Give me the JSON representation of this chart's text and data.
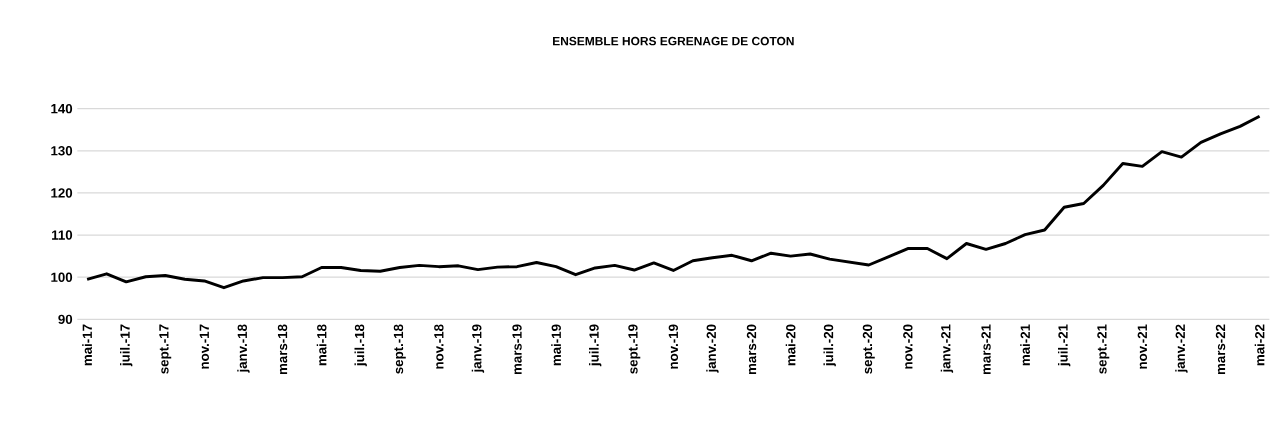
{
  "chart_data": {
    "type": "line",
    "title": "ENSEMBLE HORS EGRENAGE DE COTON",
    "categories": [
      "mai-17",
      null,
      "juil.-17",
      null,
      "sept.-17",
      null,
      "nov.-17",
      null,
      "janv.-18",
      null,
      "mars-18",
      null,
      "mai-18",
      null,
      "juil.-18",
      null,
      "sept.-18",
      null,
      "nov.-18",
      null,
      "janv.-19",
      null,
      "mars-19",
      null,
      "mai-19",
      null,
      "juil.-19",
      null,
      "sept.-19",
      null,
      "nov.-19",
      null,
      "janv.-20",
      null,
      "mars-20",
      null,
      "mai-20",
      null,
      "juil.-20",
      null,
      "sept.-20",
      null,
      "nov.-20",
      null,
      "janv.-21",
      null,
      "mars-21",
      null,
      "mai-21",
      null,
      "juil.-21",
      null,
      "sept.-21",
      null,
      "nov.-21",
      null,
      "janv.-22",
      null,
      "mars-22",
      null,
      "mai-22"
    ],
    "values": [
      99.5,
      100.8,
      98.9,
      100.1,
      100.4,
      99.5,
      99.1,
      97.5,
      99.1,
      99.9,
      99.9,
      100.1,
      102.3,
      102.3,
      101.6,
      101.4,
      102.3,
      102.8,
      102.5,
      102.7,
      101.8,
      102.4,
      102.5,
      103.5,
      102.5,
      100.6,
      102.2,
      102.8,
      101.7,
      103.4,
      101.6,
      103.9,
      104.6,
      105.2,
      103.9,
      105.7,
      105.0,
      105.5,
      104.3,
      103.6,
      102.9,
      104.8,
      106.8,
      106.8,
      104.4,
      108.0,
      106.6,
      108.0,
      110.1,
      111.2,
      116.6,
      117.5,
      121.8,
      127.0,
      126.3,
      129.8,
      128.5,
      132.0,
      134.0,
      135.8,
      138.2
    ],
    "color": "#000000",
    "ylim": [
      90,
      140
    ],
    "yticks": [
      90,
      100,
      110,
      120,
      130,
      140
    ],
    "grid": "y"
  }
}
